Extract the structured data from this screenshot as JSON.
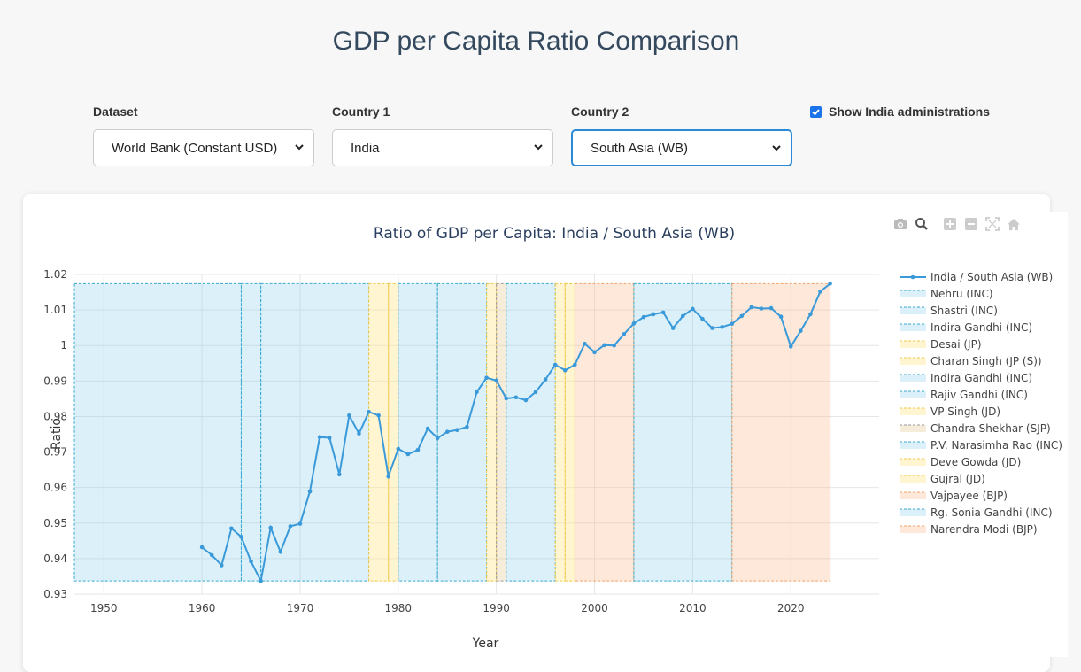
{
  "header": {
    "title": "GDP per Capita Ratio Comparison"
  },
  "controls": {
    "dataset": {
      "label": "Dataset",
      "value": "World Bank (Constant USD)"
    },
    "country1": {
      "label": "Country 1",
      "value": "India"
    },
    "country2": {
      "label": "Country 2",
      "value": "South Asia (WB)"
    },
    "show_admins": {
      "label": "Show India administrations",
      "checked": true
    }
  },
  "modebar": [
    "camera-icon",
    "zoom-icon",
    "zoom-in-icon",
    "zoom-out-icon",
    "autoscale-icon",
    "home-icon"
  ],
  "chart_data": {
    "type": "line",
    "title": "Ratio of GDP per Capita: India / South Asia (WB)",
    "xlabel": "Year",
    "ylabel": "Ratio",
    "xlim": [
      1947,
      2029
    ],
    "ylim": [
      0.93,
      1.02
    ],
    "x_ticks": [
      "1950",
      "1960",
      "1970",
      "1980",
      "1990",
      "2000",
      "2010",
      "2020"
    ],
    "y_ticks": [
      "0.93",
      "0.94",
      "0.95",
      "0.96",
      "0.97",
      "0.98",
      "0.99",
      "1",
      "1.01",
      "1.02"
    ],
    "grid": true,
    "legend": "right",
    "series": [
      {
        "name": "India / South Asia (WB)",
        "color": "#3a9ad9",
        "x": [
          1960,
          1961,
          1962,
          1963,
          1964,
          1965,
          1966,
          1967,
          1968,
          1969,
          1970,
          1971,
          1972,
          1973,
          1974,
          1975,
          1976,
          1977,
          1978,
          1979,
          1980,
          1981,
          1982,
          1983,
          1984,
          1985,
          1986,
          1987,
          1988,
          1989,
          1990,
          1991,
          1992,
          1993,
          1994,
          1995,
          1996,
          1997,
          1998,
          1999,
          2000,
          2001,
          2002,
          2003,
          2004,
          2005,
          2006,
          2007,
          2008,
          2009,
          2010,
          2011,
          2012,
          2013,
          2014,
          2015,
          2016,
          2017,
          2018,
          2019,
          2020,
          2021,
          2022,
          2023,
          2024
        ],
        "values": [
          0.9432,
          0.941,
          0.9381,
          0.9485,
          0.9461,
          0.9392,
          0.9337,
          0.9487,
          0.9419,
          0.9491,
          0.9498,
          0.9589,
          0.9742,
          0.974,
          0.9637,
          0.9803,
          0.9752,
          0.9813,
          0.9803,
          0.9631,
          0.9709,
          0.9694,
          0.9706,
          0.9766,
          0.9739,
          0.9757,
          0.9762,
          0.9771,
          0.9869,
          0.9909,
          0.9901,
          0.9851,
          0.9854,
          0.9846,
          0.9869,
          0.9904,
          0.9946,
          0.993,
          0.9946,
          1.0005,
          0.9981,
          1.0001,
          1.0,
          1.0032,
          1.0062,
          1.008,
          1.0088,
          1.0093,
          1.0049,
          1.0083,
          1.0103,
          1.0075,
          1.0049,
          1.0052,
          1.0061,
          1.0083,
          1.0108,
          1.0104,
          1.0105,
          1.0081,
          0.9997,
          1.0041,
          1.0088,
          1.0152,
          1.0174
        ]
      }
    ],
    "administrations": [
      {
        "name": "Nehru (INC)",
        "start": 1947,
        "end": 1964,
        "color": "#3ba9d0",
        "fill": "rgba(135,206,235,0.30)"
      },
      {
        "name": "Shastri (INC)",
        "start": 1964,
        "end": 1966,
        "color": "#3ba9d0",
        "fill": "rgba(135,206,235,0.30)"
      },
      {
        "name": "Indira Gandhi (INC)",
        "start": 1966,
        "end": 1977,
        "color": "#3ba9d0",
        "fill": "rgba(135,206,235,0.30)"
      },
      {
        "name": "Desai (JP)",
        "start": 1977,
        "end": 1979,
        "color": "#f2c84b",
        "fill": "rgba(255,230,140,0.40)"
      },
      {
        "name": "Charan Singh (JP (S))",
        "start": 1979,
        "end": 1980,
        "color": "#f2c84b",
        "fill": "rgba(255,230,140,0.40)"
      },
      {
        "name": "Indira Gandhi (INC)",
        "start": 1980,
        "end": 1984,
        "color": "#3ba9d0",
        "fill": "rgba(135,206,235,0.30)"
      },
      {
        "name": "Rajiv Gandhi (INC)",
        "start": 1984,
        "end": 1989,
        "color": "#3ba9d0",
        "fill": "rgba(135,206,235,0.30)"
      },
      {
        "name": "VP Singh (JD)",
        "start": 1989,
        "end": 1990,
        "color": "#f2c84b",
        "fill": "rgba(255,230,140,0.40)"
      },
      {
        "name": "Chandra Shekhar (SJP)",
        "start": 1990,
        "end": 1991,
        "color": "#9a9a9a",
        "fill": "rgba(230,200,150,0.35)"
      },
      {
        "name": "P.V. Narasimha Rao (INC)",
        "start": 1991,
        "end": 1996,
        "color": "#3ba9d0",
        "fill": "rgba(135,206,235,0.30)"
      },
      {
        "name": "Deve Gowda (JD)",
        "start": 1996,
        "end": 1997,
        "color": "#f2c84b",
        "fill": "rgba(255,230,140,0.40)"
      },
      {
        "name": "Gujral (JD)",
        "start": 1997,
        "end": 1998,
        "color": "#f2c84b",
        "fill": "rgba(255,230,140,0.40)"
      },
      {
        "name": "Vajpayee (BJP)",
        "start": 1998,
        "end": 2004,
        "color": "#f0a36a",
        "fill": "rgba(250,185,140,0.32)"
      },
      {
        "name": "Rg. Sonia Gandhi (INC)",
        "start": 2004,
        "end": 2014,
        "color": "#3ba9d0",
        "fill": "rgba(135,206,235,0.30)"
      },
      {
        "name": "Narendra Modi (BJP)",
        "start": 2014,
        "end": 2024,
        "color": "#f0a36a",
        "fill": "rgba(250,185,140,0.32)"
      }
    ]
  }
}
